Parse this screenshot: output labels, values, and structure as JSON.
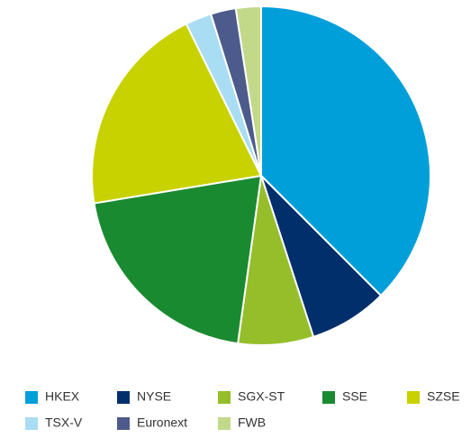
{
  "chart_data": {
    "type": "pie",
    "categories": [
      "HKEX",
      "NYSE",
      "SGX-ST",
      "SSE",
      "SZSE",
      "TSX-V",
      "Euronext",
      "FWB"
    ],
    "values": [
      37.5,
      7.5,
      7.2,
      20.2,
      20.3,
      2.5,
      2.4,
      2.4
    ],
    "colors": [
      "#009fda",
      "#002f6c",
      "#95be2a",
      "#1a8a30",
      "#c8d200",
      "#a9ddf3",
      "#4d5a8c",
      "#c3d98a"
    ],
    "legend": "bottom"
  }
}
